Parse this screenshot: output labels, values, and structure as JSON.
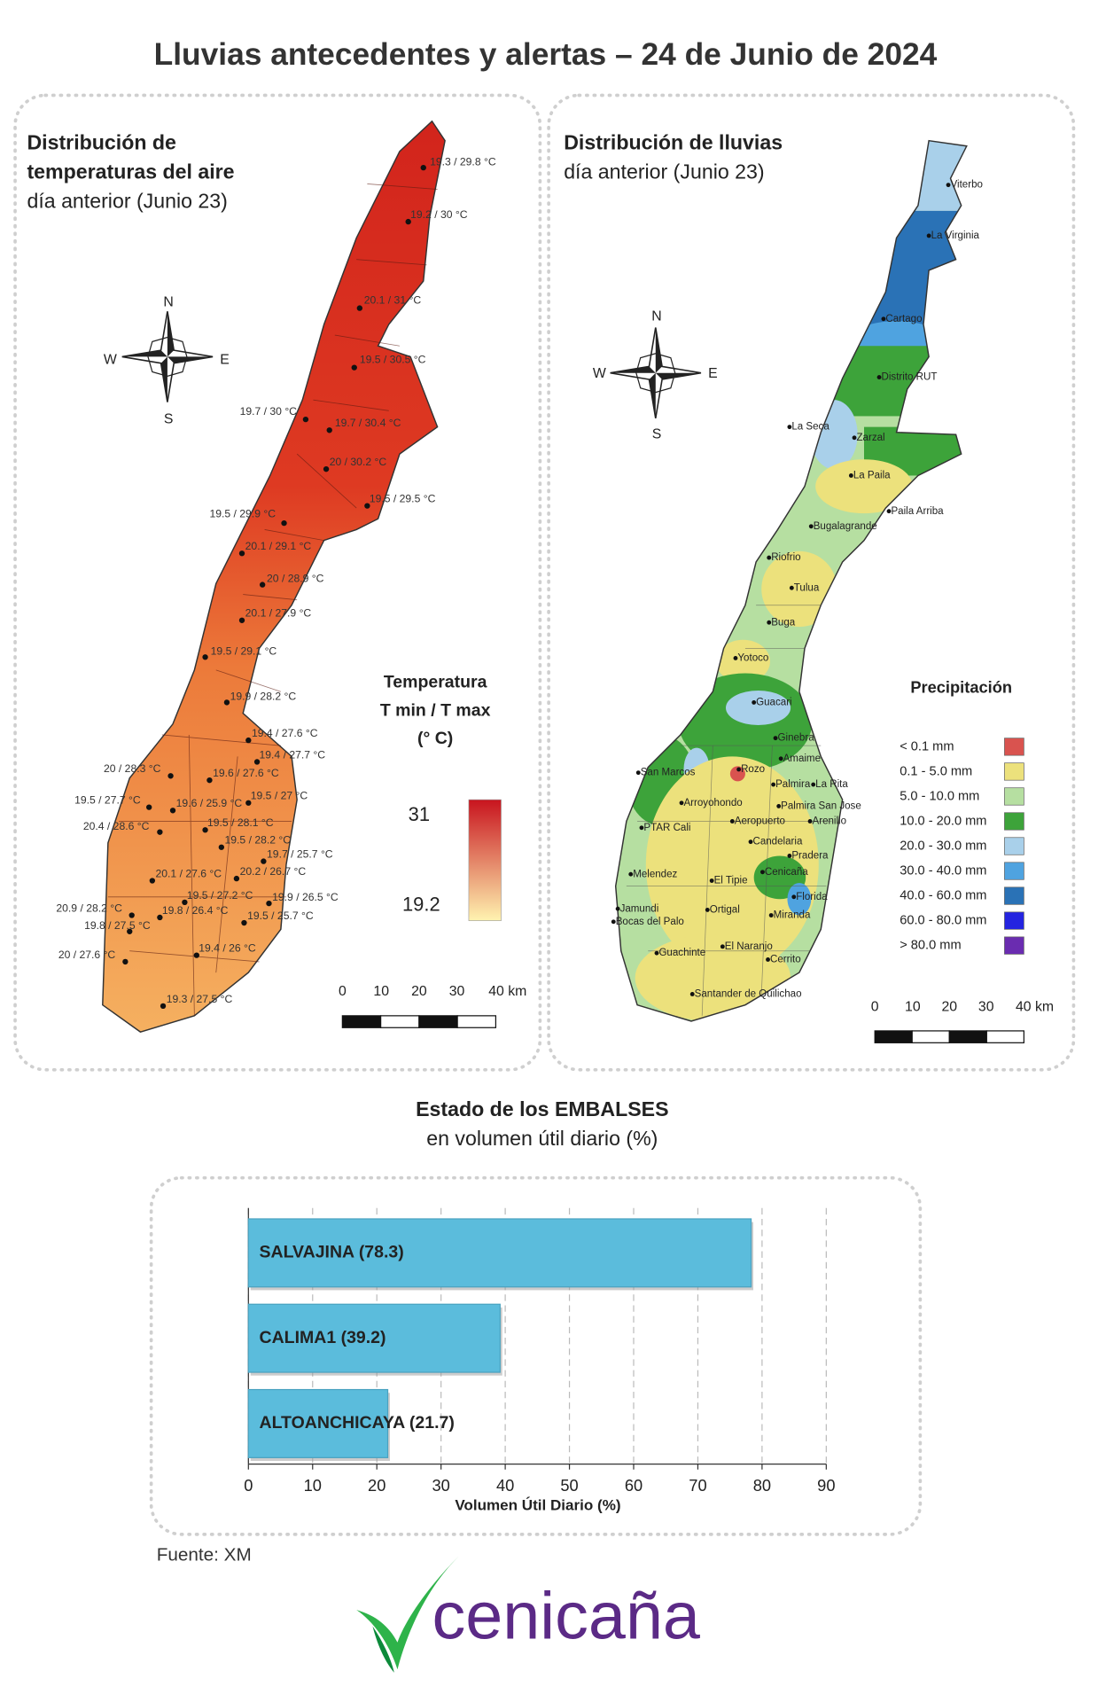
{
  "title": "Lluvias antecedentes y alertas – 24 de Junio de 2024",
  "temperature_map": {
    "title_lines": [
      "Distribución de",
      "temperaturas del aire"
    ],
    "subtitle": "día anterior (Junio 23)",
    "compass": {
      "north": "N",
      "south": "S",
      "west": "W",
      "east": "E"
    },
    "stations": [
      "19.3 / 29.8 °C",
      "19.2 / 30 °C",
      "20.1 / 31 °C",
      "19.5 / 30.5 °C",
      "19.7 / 30 °C",
      "19.7 / 30.4 °C",
      "20 / 30.2 °C",
      "19.5 / 29.5 °C",
      "19.5 / 29.9 °C",
      "20.1 / 29.1 °C",
      "20 / 28.9 °C",
      "20.1 / 27.9 °C",
      "19.5 / 29.1 °C",
      "19.9 / 28.2 °C",
      "19.4 / 27.6 °C",
      "19.4 / 27.7 °C",
      "20 / 28.3 °C",
      "19.6 / 27.6 °C",
      "19.5 / 27.7 °C",
      "19.6 / 25.9 °C",
      "19.5 / 27 °C",
      "20.4 / 28.6 °C",
      "19.5 / 28.1 °C",
      "19.5 / 28.2 °C",
      "19.7 / 25.7 °C",
      "20.1 / 27.6 °C",
      "20.2 / 26.7 °C",
      "19.5 / 27.2 °C",
      "19.9 / 26.5 °C",
      "20.9 / 28.2 °C",
      "19.8 / 26.4 °C",
      "19.5 / 25.7 °C",
      "19.8 / 27.5 °C",
      "20 / 27.6 °C",
      "19.4 / 26 °C",
      "19.3 / 27.5 °C"
    ],
    "legend": {
      "title_lines": [
        "Temperatura",
        "T min / T max",
        "(° C)"
      ],
      "max": 31,
      "min": 19.2,
      "colors": [
        "#c8141e",
        "#fff3b0"
      ]
    },
    "scale_labels": [
      "0",
      "10",
      "20",
      "30",
      "40 km"
    ]
  },
  "rain_map": {
    "title": "Distribución de lluvias",
    "subtitle": "día anterior (Junio 23)",
    "compass": {
      "north": "N",
      "south": "S",
      "west": "W",
      "east": "E"
    },
    "towns": [
      "Viterbo",
      "La Virginia",
      "Cartago",
      "Distrito RUT",
      "La Seca",
      "Zarzal",
      "La Paila",
      "Paila Arriba",
      "Bugalagrande",
      "Riofrio",
      "Tulua",
      "Buga",
      "Yotoco",
      "Guacari",
      "Ginebra",
      "Amaime",
      "San Marcos",
      "Rozo",
      "Palmira",
      "La Rita",
      "Arroyohondo",
      "Palmira San Jose",
      "Aeropuerto",
      "Arenillo",
      "PTAR Cali",
      "Candelaria",
      "Pradera",
      "Melendez",
      "Cenicaña",
      "El Tipie",
      "Florida",
      "Jamundi",
      "Ortigal",
      "Miranda",
      "Bocas del Palo",
      "El Naranjo",
      "Guachinte",
      "Cerrito",
      "Santander de Quilichao"
    ],
    "legend": {
      "title": "Precipitación",
      "items": [
        {
          "label": "< 0.1 mm",
          "color": "#d9534f"
        },
        {
          "label": "0.1 - 5.0 mm",
          "color": "#ece17c"
        },
        {
          "label": "5.0 - 10.0 mm",
          "color": "#b6dfa1"
        },
        {
          "label": "10.0 - 20.0 mm",
          "color": "#3da33a"
        },
        {
          "label": "20.0 - 30.0 mm",
          "color": "#a9d0ea"
        },
        {
          "label": "30.0 - 40.0 mm",
          "color": "#4fa3e0"
        },
        {
          "label": "40.0 - 60.0 mm",
          "color": "#2a72b6"
        },
        {
          "label": "60.0 - 80.0 mm",
          "color": "#2424e0"
        },
        {
          "label": "> 80.0 mm",
          "color": "#6a2cb0"
        }
      ]
    },
    "scale_labels": [
      "0",
      "10",
      "20",
      "30",
      "40 km"
    ]
  },
  "chart_data": {
    "type": "bar",
    "orientation": "horizontal",
    "title": "Estado de los EMBALSES",
    "subtitle": "en volumen útil diario (%)",
    "categories": [
      "SALVAJINA (78.3)",
      "CALIMA1 (39.2)",
      "ALTOANCHICAYA (21.7)"
    ],
    "values": [
      78.3,
      39.2,
      21.7
    ],
    "color": "#5bbcdc",
    "xlabel": "Volumen Útil Diario (%)",
    "xlim": [
      0,
      90
    ],
    "xticks": [
      0,
      10,
      20,
      30,
      40,
      50,
      60,
      70,
      80,
      90
    ],
    "grid": true
  },
  "source": "Fuente: XM",
  "logo": "cenicaña"
}
